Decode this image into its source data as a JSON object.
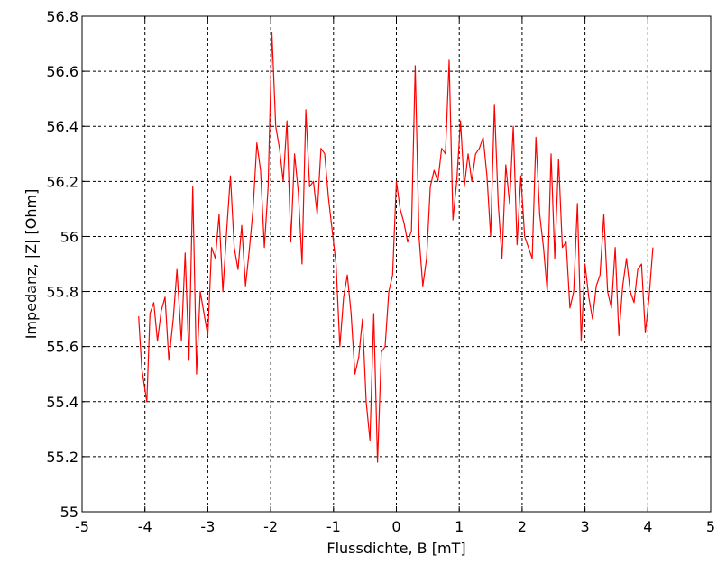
{
  "chart_data": {
    "type": "line",
    "title": "",
    "xlabel": "Flussdichte, B [mT]",
    "ylabel": "Impedanz, |Z| [Ohm]",
    "xlim": [
      -5,
      5
    ],
    "ylim": [
      55,
      56.8
    ],
    "xticks": [
      -5,
      -4,
      -3,
      -2,
      -1,
      0,
      1,
      2,
      3,
      4,
      5
    ],
    "yticks": [
      55,
      55.2,
      55.4,
      55.6,
      55.8,
      56,
      56.2,
      56.4,
      56.6,
      56.8
    ],
    "xtick_labels": [
      "-5",
      "-4",
      "-3",
      "-2",
      "-1",
      "0",
      "1",
      "2",
      "3",
      "4",
      "5"
    ],
    "ytick_labels": [
      "55",
      "55.2",
      "55.4",
      "55.6",
      "55.8",
      "56",
      "56.2",
      "56.4",
      "56.6",
      "56.8"
    ],
    "grid": true,
    "grid_style": "dashed",
    "line_color": "#ff0000",
    "series": [
      {
        "x": [
          -4.1,
          -4.05,
          -3.97,
          -3.92,
          -3.86,
          -3.8,
          -3.74,
          -3.68,
          -3.62,
          -3.55,
          -3.49,
          -3.42,
          -3.36,
          -3.3,
          -3.24,
          -3.18,
          -3.12,
          -3.06,
          -3.0,
          -2.94,
          -2.88,
          -2.82,
          -2.76,
          -2.7,
          -2.64,
          -2.58,
          -2.52,
          -2.46,
          -2.4,
          -2.34,
          -2.28,
          -2.22,
          -2.16,
          -2.1,
          -2.04,
          -1.98,
          -1.92,
          -1.86,
          -1.8,
          -1.74,
          -1.68,
          -1.62,
          -1.56,
          -1.5,
          -1.44,
          -1.38,
          -1.32,
          -1.26,
          -1.2,
          -1.14,
          -1.08,
          -1.02,
          -0.96,
          -0.9,
          -0.84,
          -0.78,
          -0.72,
          -0.66,
          -0.6,
          -0.54,
          -0.48,
          -0.42,
          -0.36,
          -0.3,
          -0.24,
          -0.18,
          -0.12,
          -0.06,
          0.0,
          0.06,
          0.12,
          0.18,
          0.24,
          0.3,
          0.36,
          0.42,
          0.48,
          0.54,
          0.6,
          0.66,
          0.72,
          0.78,
          0.84,
          0.9,
          0.96,
          1.02,
          1.08,
          1.14,
          1.2,
          1.26,
          1.32,
          1.38,
          1.44,
          1.5,
          1.56,
          1.62,
          1.68,
          1.74,
          1.8,
          1.86,
          1.92,
          1.98,
          2.04,
          2.1,
          2.16,
          2.22,
          2.28,
          2.34,
          2.4,
          2.46,
          2.52,
          2.58,
          2.64,
          2.7,
          2.76,
          2.82,
          2.88,
          2.94,
          3.0,
          3.06,
          3.12,
          3.18,
          3.24,
          3.3,
          3.36,
          3.42,
          3.48,
          3.54,
          3.6,
          3.66,
          3.72,
          3.78,
          3.84,
          3.9,
          3.96,
          4.02,
          4.08
        ],
        "y": [
          55.71,
          55.52,
          55.4,
          55.72,
          55.76,
          55.62,
          55.73,
          55.78,
          55.55,
          55.7,
          55.88,
          55.62,
          55.94,
          55.55,
          56.18,
          55.5,
          55.8,
          55.72,
          55.64,
          55.96,
          55.92,
          56.08,
          55.8,
          56.02,
          56.22,
          55.96,
          55.88,
          56.04,
          55.82,
          55.95,
          56.1,
          56.34,
          56.24,
          55.96,
          56.18,
          56.74,
          56.4,
          56.32,
          56.2,
          56.42,
          55.98,
          56.3,
          56.16,
          55.9,
          56.46,
          56.18,
          56.2,
          56.08,
          56.32,
          56.3,
          56.14,
          56.02,
          55.9,
          55.6,
          55.78,
          55.86,
          55.72,
          55.5,
          55.56,
          55.7,
          55.4,
          55.26,
          55.72,
          55.18,
          55.58,
          55.6,
          55.8,
          55.86,
          56.2,
          56.1,
          56.05,
          55.98,
          56.02,
          56.62,
          56.0,
          55.82,
          55.92,
          56.18,
          56.24,
          56.2,
          56.32,
          56.3,
          56.64,
          56.06,
          56.2,
          56.42,
          56.18,
          56.3,
          56.2,
          56.3,
          56.32,
          56.36,
          56.22,
          56.0,
          56.48,
          56.12,
          55.92,
          56.26,
          56.12,
          56.4,
          55.97,
          56.22,
          56.0,
          55.96,
          55.92,
          56.36,
          56.08,
          55.96,
          55.8,
          56.3,
          55.92,
          56.28,
          55.96,
          55.98,
          55.74,
          55.8,
          56.12,
          55.62,
          55.9,
          55.78,
          55.7,
          55.82,
          55.86,
          56.08,
          55.8,
          55.74,
          55.96,
          55.64,
          55.82,
          55.92,
          55.8,
          55.76,
          55.88,
          55.9,
          55.65,
          55.78,
          55.96
        ]
      }
    ]
  }
}
